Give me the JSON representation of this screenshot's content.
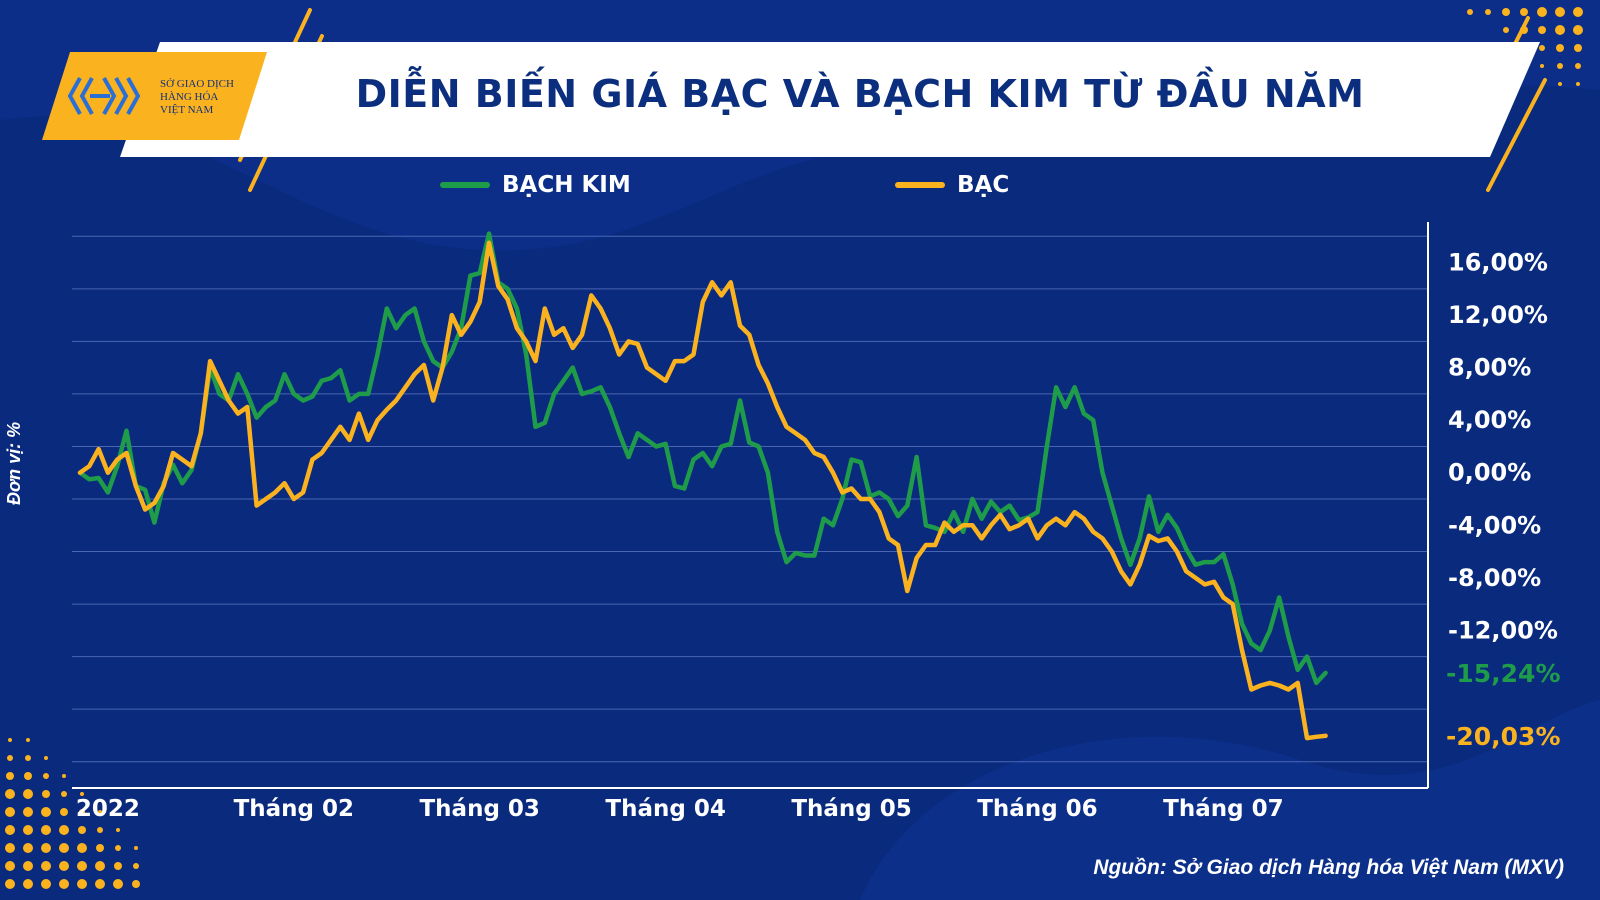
{
  "header": {
    "title": "DIỄN BIẾN GIÁ BẠC VÀ BẠCH KIM TỪ ĐẦU NĂM",
    "logo_lines": [
      "SỞ GIAO DỊCH",
      "HÀNG HÓA",
      "VIỆT NAM"
    ]
  },
  "unit_label": "Đơn vị: %",
  "source": "Nguồn: Sở Giao dịch Hàng hóa Việt Nam (MXV)",
  "colors": {
    "background": "#0a2a7e",
    "accent": "#fbb21f",
    "platinum": "#1f9c4a",
    "silver": "#fbb21f"
  },
  "chart_data": {
    "type": "line",
    "title": "DIỄN BIẾN GIÁ BẠC VÀ BẠCH KIM TỪ ĐẦU NĂM",
    "ylabel": "Đơn vị: %",
    "ylim": [
      -24,
      20
    ],
    "ytick_labels": [
      "16,00%",
      "12,00%",
      "8,00%",
      "4,00%",
      "0,00%",
      "-4,00%",
      "-8,00%",
      "-12,00%"
    ],
    "ytick_values": [
      16,
      12,
      8,
      4,
      0,
      -4,
      -8,
      -12
    ],
    "xlim": [
      0,
      142
    ],
    "xtick_labels": [
      "2022",
      "Tháng 02",
      "Tháng 03",
      "Tháng 04",
      "Tháng 05",
      "Tháng 06",
      "Tháng 07"
    ],
    "xtick_positions": [
      3,
      23,
      43,
      63,
      83,
      103,
      123
    ],
    "end_labels": [
      {
        "text": "-15,24%",
        "value": -15.24,
        "series": "BẠCH KIM"
      },
      {
        "text": "-20,03%",
        "value": -20.03,
        "series": "BẠC"
      }
    ],
    "legend_position": "top",
    "grid": true,
    "series": [
      {
        "name": "BẠCH KIM",
        "color": "#1f9c4a",
        "points": [
          [
            0,
            0
          ],
          [
            1,
            -0.5
          ],
          [
            2,
            -0.4
          ],
          [
            3,
            -1.5
          ],
          [
            4,
            0.5
          ],
          [
            5,
            3.2
          ],
          [
            6,
            -1
          ],
          [
            7,
            -1.3
          ],
          [
            8,
            -3.8
          ],
          [
            9,
            -0.8
          ],
          [
            10,
            0.6
          ],
          [
            11,
            -0.8
          ],
          [
            12,
            0.2
          ],
          [
            13,
            3
          ],
          [
            14,
            8
          ],
          [
            15,
            6
          ],
          [
            16,
            5.5
          ],
          [
            17,
            7.5
          ],
          [
            18,
            6
          ],
          [
            19,
            4.2
          ],
          [
            20,
            5
          ],
          [
            21,
            5.5
          ],
          [
            22,
            7.5
          ],
          [
            23,
            6
          ],
          [
            24,
            5.5
          ],
          [
            25,
            5.8
          ],
          [
            26,
            7
          ],
          [
            27,
            7.2
          ],
          [
            28,
            7.8
          ],
          [
            29,
            5.5
          ],
          [
            30,
            6
          ],
          [
            31,
            6
          ],
          [
            32,
            9
          ],
          [
            33,
            12.5
          ],
          [
            34,
            11
          ],
          [
            35,
            12
          ],
          [
            36,
            12.5
          ],
          [
            37,
            10
          ],
          [
            38,
            8.5
          ],
          [
            39,
            8
          ],
          [
            40,
            9.2
          ],
          [
            41,
            11
          ],
          [
            42,
            15
          ],
          [
            43,
            15.2
          ],
          [
            44,
            18.2
          ],
          [
            45,
            14.5
          ],
          [
            46,
            14
          ],
          [
            47,
            12.5
          ],
          [
            48,
            9
          ],
          [
            49,
            3.5
          ],
          [
            50,
            3.8
          ],
          [
            51,
            6
          ],
          [
            52,
            7
          ],
          [
            53,
            8
          ],
          [
            54,
            6
          ],
          [
            55,
            6.2
          ],
          [
            56,
            6.5
          ],
          [
            57,
            5
          ],
          [
            58,
            3
          ],
          [
            59,
            1.2
          ],
          [
            60,
            3
          ],
          [
            61,
            2.5
          ],
          [
            62,
            2
          ],
          [
            63,
            2.2
          ],
          [
            64,
            -1
          ],
          [
            65,
            -1.2
          ],
          [
            66,
            1
          ],
          [
            67,
            1.5
          ],
          [
            68,
            0.5
          ],
          [
            69,
            2
          ],
          [
            70,
            2.2
          ],
          [
            71,
            5.5
          ],
          [
            72,
            2.3
          ],
          [
            73,
            2
          ],
          [
            74,
            0
          ],
          [
            75,
            -4.5
          ],
          [
            76,
            -6.8
          ],
          [
            77,
            -6.1
          ],
          [
            78,
            -6.3
          ],
          [
            79,
            -6.3
          ],
          [
            80,
            -3.5
          ],
          [
            81,
            -4
          ],
          [
            82,
            -2
          ],
          [
            83,
            1
          ],
          [
            84,
            0.8
          ],
          [
            85,
            -1.8
          ],
          [
            86,
            -1.5
          ],
          [
            87,
            -2
          ],
          [
            88,
            -3.3
          ],
          [
            89,
            -2.5
          ],
          [
            90,
            1.2
          ],
          [
            91,
            -4
          ],
          [
            92,
            -4.2
          ],
          [
            93,
            -4.5
          ],
          [
            94,
            -3
          ],
          [
            95,
            -4.5
          ],
          [
            96,
            -2
          ],
          [
            97,
            -3.5
          ],
          [
            98,
            -2.2
          ],
          [
            99,
            -3
          ],
          [
            100,
            -2.5
          ],
          [
            101,
            -3.6
          ],
          [
            102,
            -3.4
          ],
          [
            103,
            -3
          ],
          [
            104,
            2
          ],
          [
            105,
            6.5
          ],
          [
            106,
            5
          ],
          [
            107,
            6.5
          ],
          [
            108,
            4.5
          ],
          [
            109,
            4
          ],
          [
            110,
            0
          ],
          [
            111,
            -2.5
          ],
          [
            112,
            -5
          ],
          [
            113,
            -7
          ],
          [
            114,
            -5
          ],
          [
            115,
            -1.8
          ],
          [
            116,
            -4.5
          ],
          [
            117,
            -3.2
          ],
          [
            118,
            -4.2
          ],
          [
            119,
            -5.8
          ],
          [
            120,
            -7
          ],
          [
            121,
            -6.8
          ],
          [
            122,
            -6.8
          ],
          [
            123,
            -6.2
          ],
          [
            124,
            -8.5
          ],
          [
            125,
            -11.5
          ],
          [
            126,
            -13
          ],
          [
            127,
            -13.5
          ],
          [
            128,
            -12
          ],
          [
            129,
            -9.5
          ],
          [
            130,
            -12.5
          ],
          [
            131,
            -15
          ],
          [
            132,
            -14
          ],
          [
            133,
            -16
          ],
          [
            134,
            -15.24
          ]
        ]
      },
      {
        "name": "BẠC",
        "color": "#fbb21f",
        "points": [
          [
            0,
            0
          ],
          [
            1,
            0.5
          ],
          [
            2,
            1.8
          ],
          [
            3,
            0
          ],
          [
            4,
            1
          ],
          [
            5,
            1.5
          ],
          [
            6,
            -1
          ],
          [
            7,
            -2.8
          ],
          [
            8,
            -2.3
          ],
          [
            9,
            -1
          ],
          [
            10,
            1.5
          ],
          [
            11,
            1
          ],
          [
            12,
            0.5
          ],
          [
            13,
            3
          ],
          [
            14,
            8.5
          ],
          [
            15,
            7
          ],
          [
            16,
            5.5
          ],
          [
            17,
            4.5
          ],
          [
            18,
            5
          ],
          [
            19,
            -2.5
          ],
          [
            20,
            -2
          ],
          [
            21,
            -1.5
          ],
          [
            22,
            -0.8
          ],
          [
            23,
            -2
          ],
          [
            24,
            -1.5
          ],
          [
            25,
            1
          ],
          [
            26,
            1.5
          ],
          [
            27,
            2.5
          ],
          [
            28,
            3.5
          ],
          [
            29,
            2.5
          ],
          [
            30,
            4.5
          ],
          [
            31,
            2.5
          ],
          [
            32,
            4
          ],
          [
            33,
            4.8
          ],
          [
            34,
            5.5
          ],
          [
            35,
            6.5
          ],
          [
            36,
            7.5
          ],
          [
            37,
            8.2
          ],
          [
            38,
            5.5
          ],
          [
            39,
            8
          ],
          [
            40,
            12
          ],
          [
            41,
            10.5
          ],
          [
            42,
            11.5
          ],
          [
            43,
            13
          ],
          [
            44,
            17.5
          ],
          [
            45,
            14.2
          ],
          [
            46,
            13.2
          ],
          [
            47,
            11
          ],
          [
            48,
            10
          ],
          [
            49,
            8.5
          ],
          [
            50,
            12.5
          ],
          [
            51,
            10.5
          ],
          [
            52,
            11
          ],
          [
            53,
            9.5
          ],
          [
            54,
            10.5
          ],
          [
            55,
            13.5
          ],
          [
            56,
            12.5
          ],
          [
            57,
            11
          ],
          [
            58,
            9
          ],
          [
            59,
            10
          ],
          [
            60,
            9.8
          ],
          [
            61,
            8
          ],
          [
            62,
            7.5
          ],
          [
            63,
            7
          ],
          [
            64,
            8.5
          ],
          [
            65,
            8.5
          ],
          [
            66,
            9
          ],
          [
            67,
            13
          ],
          [
            68,
            14.5
          ],
          [
            69,
            13.5
          ],
          [
            70,
            14.5
          ],
          [
            71,
            11.2
          ],
          [
            72,
            10.5
          ],
          [
            73,
            8.2
          ],
          [
            74,
            6.8
          ],
          [
            75,
            5
          ],
          [
            76,
            3.5
          ],
          [
            77,
            3
          ],
          [
            78,
            2.5
          ],
          [
            79,
            1.5
          ],
          [
            80,
            1.2
          ],
          [
            81,
            0
          ],
          [
            82,
            -1.5
          ],
          [
            83,
            -1.2
          ],
          [
            84,
            -2
          ],
          [
            85,
            -2
          ],
          [
            86,
            -3
          ],
          [
            87,
            -5
          ],
          [
            88,
            -5.5
          ],
          [
            89,
            -9
          ],
          [
            90,
            -6.5
          ],
          [
            91,
            -5.5
          ],
          [
            92,
            -5.5
          ],
          [
            93,
            -3.8
          ],
          [
            94,
            -4.5
          ],
          [
            95,
            -4
          ],
          [
            96,
            -4
          ],
          [
            97,
            -5
          ],
          [
            98,
            -4
          ],
          [
            99,
            -3.2
          ],
          [
            100,
            -4.3
          ],
          [
            101,
            -4
          ],
          [
            102,
            -3.5
          ],
          [
            103,
            -5
          ],
          [
            104,
            -4
          ],
          [
            105,
            -3.5
          ],
          [
            106,
            -4
          ],
          [
            107,
            -3
          ],
          [
            108,
            -3.5
          ],
          [
            109,
            -4.5
          ],
          [
            110,
            -5
          ],
          [
            111,
            -6
          ],
          [
            112,
            -7.5
          ],
          [
            113,
            -8.5
          ],
          [
            114,
            -7
          ],
          [
            115,
            -4.8
          ],
          [
            116,
            -5.2
          ],
          [
            117,
            -5
          ],
          [
            118,
            -6
          ],
          [
            119,
            -7.5
          ],
          [
            120,
            -8
          ],
          [
            121,
            -8.5
          ],
          [
            122,
            -8.3
          ],
          [
            123,
            -9.5
          ],
          [
            124,
            -10
          ],
          [
            125,
            -13.5
          ],
          [
            126,
            -16.5
          ],
          [
            127,
            -16.2
          ],
          [
            128,
            -16
          ],
          [
            129,
            -16.2
          ],
          [
            130,
            -16.5
          ],
          [
            131,
            -16
          ],
          [
            132,
            -20.2
          ],
          [
            133,
            -20.1
          ],
          [
            134,
            -20.03
          ]
        ]
      }
    ]
  }
}
